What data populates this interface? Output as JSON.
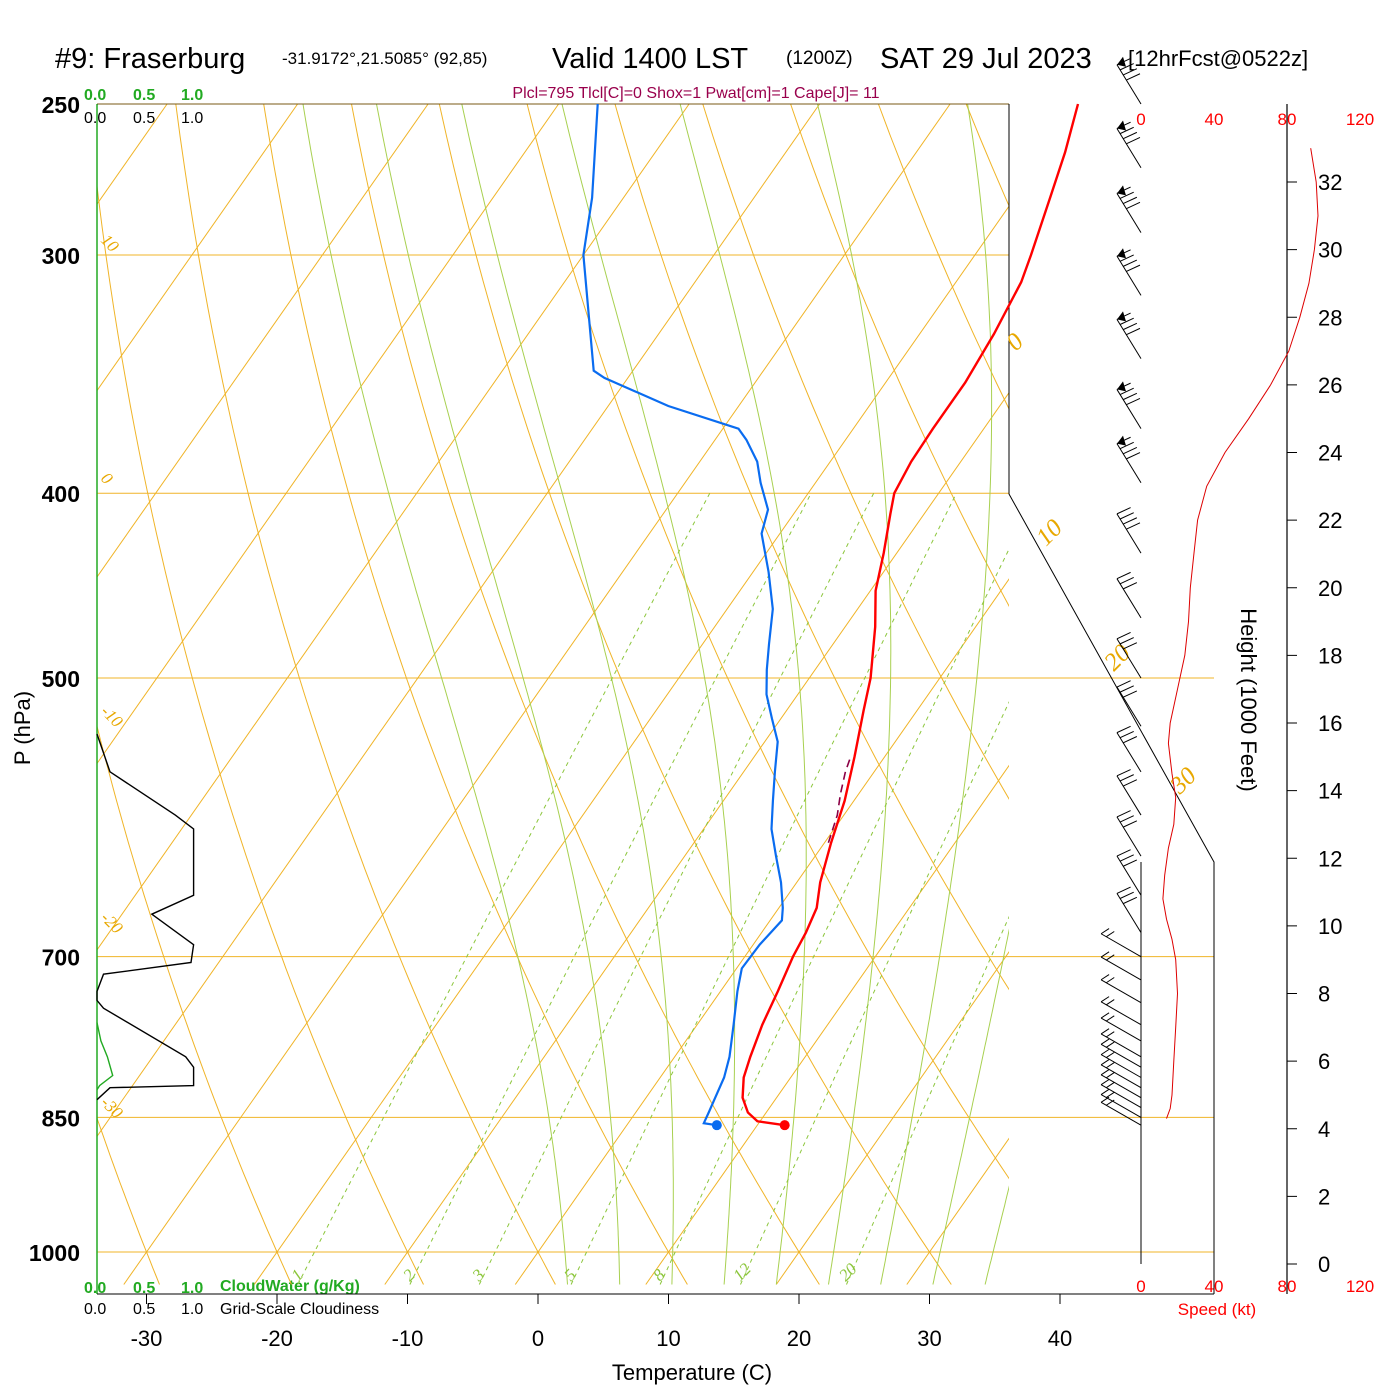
{
  "title": {
    "station": "#9: Fraserburg",
    "coords": "-31.9172°,21.5085° (92,85)",
    "valid": "Valid 1400 LST",
    "utc": "(1200Z)",
    "date": "SAT 29 Jul 2023",
    "forecast": "[12hrFcst@0522z]"
  },
  "indices": "Plcl=795 Tlcl[C]=0 Shox=1 Pwat[cm]=1 Cape[J]= 11",
  "labels": {
    "temperature_axis": "Temperature (C)",
    "pressure_axis": "P (hPa)",
    "height_axis": "Height (1000 Feet)",
    "speed_axis": "Speed (kt)",
    "cloud_water": "CloudWater (g/Kg)",
    "grid_cloudiness": "Grid-Scale Cloudiness"
  },
  "colors": {
    "isotherm": "#f0b428",
    "mixing_ratio": "#8cc63c",
    "moist_adiabat": "#a8d050",
    "temperature": "#ff0000",
    "dewpoint": "#0a6cf0",
    "parcel": "#8b0045",
    "cloud_water": "#22aa22",
    "cloudiness": "#000000",
    "speed": "#dd0000",
    "indices": "#99004c"
  },
  "chart_data": {
    "type": "skew-t",
    "pressure_levels": [
      250,
      300,
      400,
      500,
      700,
      850,
      1000
    ],
    "temperature_ticks": [
      -30,
      -20,
      -10,
      0,
      10,
      20,
      30,
      40
    ],
    "xlim": [
      -33.5,
      36
    ],
    "ylim_hpa": [
      1040,
      250
    ],
    "isotherm_labels": [
      "10",
      "0",
      "-10",
      "-20",
      "-30"
    ],
    "isotherm_labels_right": [
      "0",
      "10",
      "20",
      "30"
    ],
    "mixing_ratio_labels": [
      "1",
      "2",
      "3",
      "5",
      "8",
      "12",
      "20"
    ],
    "cloud_scale_top": [
      "0.0",
      "0.5",
      "1.0"
    ],
    "cloud_scale_bottom": [
      "0.0",
      "0.5",
      "1.0"
    ],
    "speed_ticks": [
      "0",
      "40",
      "80",
      "120"
    ],
    "height_ticks_kft": [
      0,
      2,
      4,
      6,
      8,
      10,
      12,
      14,
      16,
      18,
      20,
      22,
      24,
      26,
      28,
      30,
      32
    ],
    "height_range_kft": [
      0,
      33
    ],
    "temperature_profile": [
      {
        "p": 858,
        "t": 12.1
      },
      {
        "p": 854,
        "t": 9.8
      },
      {
        "p": 845,
        "t": 8.6
      },
      {
        "p": 830,
        "t": 7.4
      },
      {
        "p": 810,
        "t": 6.4
      },
      {
        "p": 790,
        "t": 5.8
      },
      {
        "p": 760,
        "t": 5.0
      },
      {
        "p": 730,
        "t": 4.4
      },
      {
        "p": 700,
        "t": 3.7
      },
      {
        "p": 680,
        "t": 3.4
      },
      {
        "p": 660,
        "t": 2.9
      },
      {
        "p": 640,
        "t": 1.8
      },
      {
        "p": 610,
        "t": 0.5
      },
      {
        "p": 580,
        "t": -0.7
      },
      {
        "p": 550,
        "t": -2.3
      },
      {
        "p": 520,
        "t": -4.1
      },
      {
        "p": 500,
        "t": -5.3
      },
      {
        "p": 470,
        "t": -7.7
      },
      {
        "p": 450,
        "t": -9.6
      },
      {
        "p": 430,
        "t": -11.0
      },
      {
        "p": 410,
        "t": -12.6
      },
      {
        "p": 400,
        "t": -13.4
      },
      {
        "p": 385,
        "t": -13.8
      },
      {
        "p": 370,
        "t": -13.9
      },
      {
        "p": 350,
        "t": -13.9
      },
      {
        "p": 330,
        "t": -14.3
      },
      {
        "p": 310,
        "t": -15.0
      },
      {
        "p": 300,
        "t": -15.7
      },
      {
        "p": 280,
        "t": -17.3
      },
      {
        "p": 265,
        "t": -18.6
      },
      {
        "p": 250,
        "t": -20.2
      }
    ],
    "dewpoint_profile": [
      {
        "p": 858,
        "t": 6.9
      },
      {
        "p": 856,
        "t": 5.8
      },
      {
        "p": 845,
        "t": 5.6
      },
      {
        "p": 830,
        "t": 5.3
      },
      {
        "p": 810,
        "t": 4.9
      },
      {
        "p": 790,
        "t": 4.2
      },
      {
        "p": 760,
        "t": 2.8
      },
      {
        "p": 730,
        "t": 1.3
      },
      {
        "p": 710,
        "t": 0.4
      },
      {
        "p": 690,
        "t": 0.5
      },
      {
        "p": 670,
        "t": 0.9
      },
      {
        "p": 660,
        "t": 0.3
      },
      {
        "p": 640,
        "t": -1.2
      },
      {
        "p": 620,
        "t": -3.0
      },
      {
        "p": 600,
        "t": -4.8
      },
      {
        "p": 580,
        "t": -6.2
      },
      {
        "p": 560,
        "t": -7.6
      },
      {
        "p": 540,
        "t": -9.0
      },
      {
        "p": 525,
        "t": -10.7
      },
      {
        "p": 510,
        "t": -12.4
      },
      {
        "p": 495,
        "t": -13.7
      },
      {
        "p": 480,
        "t": -14.9
      },
      {
        "p": 460,
        "t": -16.5
      },
      {
        "p": 440,
        "t": -18.8
      },
      {
        "p": 420,
        "t": -21.4
      },
      {
        "p": 408,
        "t": -22.2
      },
      {
        "p": 395,
        "t": -24.2
      },
      {
        "p": 385,
        "t": -25.6
      },
      {
        "p": 375,
        "t": -27.6
      },
      {
        "p": 370,
        "t": -28.8
      },
      {
        "p": 360,
        "t": -35.4
      },
      {
        "p": 348,
        "t": -41.8
      },
      {
        "p": 345,
        "t": -43.0
      },
      {
        "p": 300,
        "t": -50.0
      },
      {
        "p": 280,
        "t": -52.4
      },
      {
        "p": 250,
        "t": -57.0
      }
    ],
    "parcel_profile": [
      {
        "p": 610,
        "t": 0.3
      },
      {
        "p": 590,
        "t": -0.5
      },
      {
        "p": 575,
        "t": -1.4
      },
      {
        "p": 560,
        "t": -2.2
      },
      {
        "p": 550,
        "t": -2.6
      }
    ],
    "surface_temperature": {
      "p": 858,
      "t": 12.1
    },
    "surface_dewpoint": {
      "p": 858,
      "t": 6.9
    },
    "cloudiness_profile": [
      {
        "p": 535,
        "c": 0.0
      },
      {
        "p": 560,
        "c": 0.1
      },
      {
        "p": 590,
        "c": 0.6
      },
      {
        "p": 600,
        "c": 0.74
      },
      {
        "p": 650,
        "c": 0.74
      },
      {
        "p": 665,
        "c": 0.42
      },
      {
        "p": 690,
        "c": 0.74
      },
      {
        "p": 705,
        "c": 0.72
      },
      {
        "p": 715,
        "c": 0.05
      },
      {
        "p": 730,
        "c": 0.0
      },
      {
        "p": 738,
        "c": 0.0
      },
      {
        "p": 745,
        "c": 0.05
      },
      {
        "p": 790,
        "c": 0.68
      },
      {
        "p": 800,
        "c": 0.74
      },
      {
        "p": 818,
        "c": 0.74
      },
      {
        "p": 820,
        "c": 0.1
      },
      {
        "p": 832,
        "c": 0.0
      }
    ],
    "cloudwater_profile": [
      {
        "p": 758,
        "c": 0.0
      },
      {
        "p": 775,
        "c": 0.03
      },
      {
        "p": 790,
        "c": 0.08
      },
      {
        "p": 808,
        "c": 0.12
      },
      {
        "p": 818,
        "c": 0.02
      },
      {
        "p": 822,
        "c": 0.0
      }
    ],
    "wind_speed_profile": [
      {
        "h": 4.3,
        "s": 14
      },
      {
        "h": 4.6,
        "s": 16
      },
      {
        "h": 5.0,
        "s": 17
      },
      {
        "h": 6.0,
        "s": 18
      },
      {
        "h": 7.0,
        "s": 19
      },
      {
        "h": 8.0,
        "s": 20
      },
      {
        "h": 9.0,
        "s": 19
      },
      {
        "h": 9.6,
        "s": 17
      },
      {
        "h": 10.2,
        "s": 14
      },
      {
        "h": 10.8,
        "s": 12
      },
      {
        "h": 11.5,
        "s": 13
      },
      {
        "h": 12.3,
        "s": 15
      },
      {
        "h": 13.0,
        "s": 18
      },
      {
        "h": 13.8,
        "s": 19
      },
      {
        "h": 14.5,
        "s": 17
      },
      {
        "h": 15.4,
        "s": 15
      },
      {
        "h": 16.0,
        "s": 16
      },
      {
        "h": 17.0,
        "s": 20
      },
      {
        "h": 18.0,
        "s": 24
      },
      {
        "h": 19.0,
        "s": 26
      },
      {
        "h": 20.0,
        "s": 27
      },
      {
        "h": 21.0,
        "s": 29
      },
      {
        "h": 22.0,
        "s": 31
      },
      {
        "h": 23.0,
        "s": 36
      },
      {
        "h": 24.0,
        "s": 46
      },
      {
        "h": 25.0,
        "s": 59
      },
      {
        "h": 26.0,
        "s": 71
      },
      {
        "h": 27.0,
        "s": 81
      },
      {
        "h": 28.0,
        "s": 87
      },
      {
        "h": 29.0,
        "s": 92
      },
      {
        "h": 30.0,
        "s": 95
      },
      {
        "h": 31.0,
        "s": 97
      },
      {
        "h": 32.0,
        "s": 96
      },
      {
        "h": 33.0,
        "s": 93
      }
    ],
    "wind_barb_pressures": [
      250,
      270,
      292,
      315,
      340,
      370,
      395,
      430,
      465,
      500,
      530,
      560,
      590,
      620,
      650,
      680,
      700,
      720,
      740,
      760,
      775,
      790,
      800,
      810,
      820,
      830,
      840,
      850,
      858
    ]
  }
}
